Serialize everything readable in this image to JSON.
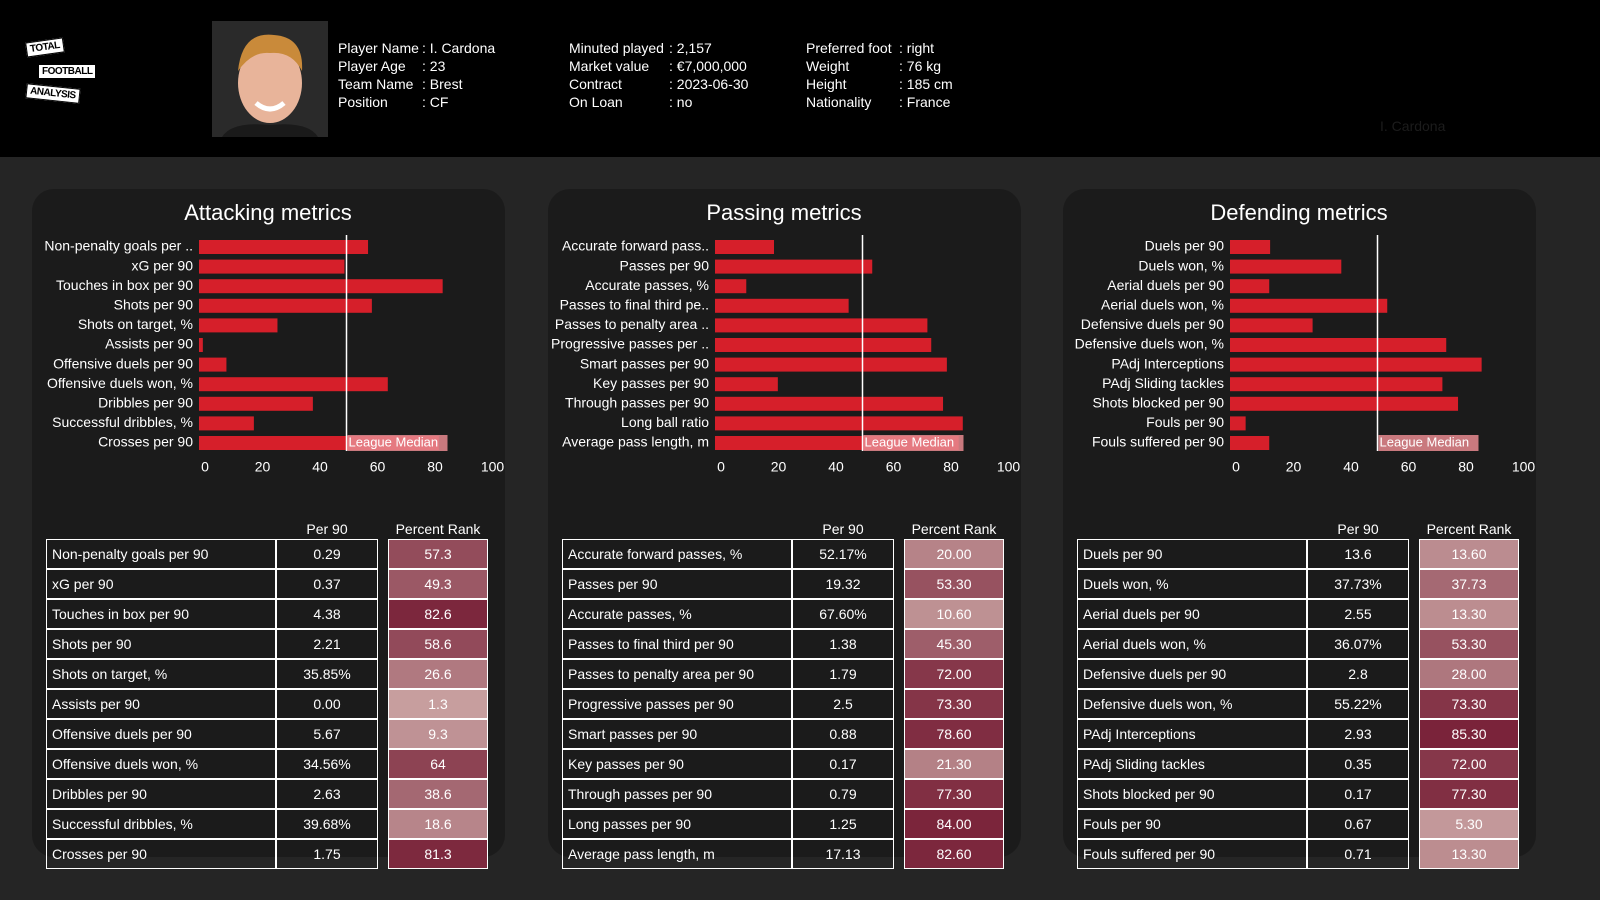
{
  "header": {
    "logo": [
      "TOTAL",
      "FOOTBALL",
      "ANALYSIS"
    ],
    "fields": [
      [
        {
          "label": "Player Name",
          "value": ": I. Cardona"
        },
        {
          "label": "Player Age",
          "value": ": 23"
        },
        {
          "label": "Team Name",
          "value": ": Brest"
        },
        {
          "label": "Position",
          "value": ": CF"
        }
      ],
      [
        {
          "label": "Minuted played",
          "value": ": 2,157"
        },
        {
          "label": "Market value",
          "value": ": €7,000,000"
        },
        {
          "label": "Contract",
          "value": ": 2023-06-30"
        },
        {
          "label": "On Loan",
          "value": ": no"
        }
      ],
      [
        {
          "label": "Preferred foot",
          "value": ": right"
        },
        {
          "label": "Weight",
          "value": ": 76 kg"
        },
        {
          "label": "Height",
          "value": ": 185 cm"
        },
        {
          "label": "Nationality",
          "value": ": France"
        }
      ]
    ],
    "watermark": "I. Cardona"
  },
  "chart_data": [
    {
      "type": "bar",
      "orientation": "horizontal",
      "title": "Attacking metrics",
      "color": "#d61f2a",
      "categories": [
        "Non-penalty goals per ..",
        "xG per 90",
        "Touches in box per 90",
        "Shots per 90",
        "Shots on target, %",
        "Assists per 90",
        "Offensive duels per 90",
        "Offensive duels won, %",
        "Dribbles per 90",
        "Successful dribbles, %",
        "Crosses per 90"
      ],
      "values": [
        57.3,
        49.3,
        82.6,
        58.6,
        26.6,
        1.3,
        9.3,
        64,
        38.6,
        18.6,
        81.3
      ],
      "xlim": [
        0,
        100
      ],
      "xticks": [
        0,
        20,
        40,
        60,
        80,
        100
      ],
      "median": 50,
      "median_label": "League Median",
      "table": {
        "columns": [
          "Per 90",
          "Percent Rank"
        ],
        "rows": [
          [
            "Non-penalty goals per 90",
            "0.29"
          ],
          [
            "xG per 90",
            "0.37"
          ],
          [
            "Touches in box per 90",
            "4.38"
          ],
          [
            "Shots per 90",
            "2.21"
          ],
          [
            "Shots on target, %",
            "35.85%"
          ],
          [
            "Assists per 90",
            "0.00"
          ],
          [
            "Offensive duels per 90",
            "5.67"
          ],
          [
            "Offensive duels won, %",
            "34.56%"
          ],
          [
            "Dribbles per 90",
            "2.63"
          ],
          [
            "Successful dribbles, %",
            "39.68%"
          ],
          [
            "Crosses per 90",
            "1.75"
          ]
        ]
      }
    },
    {
      "type": "bar",
      "orientation": "horizontal",
      "title": "Passing metrics",
      "color": "#d61f2a",
      "categories": [
        "Accurate forward pass..",
        "Passes per 90",
        "Accurate passes, %",
        "Passes to final third pe..",
        "Passes to penalty area ..",
        "Progressive passes per ..",
        "Smart passes per 90",
        "Key passes per 90",
        "Through passes per 90",
        "Long ball ratio",
        "Average pass length, m"
      ],
      "values": [
        20,
        53.3,
        10.6,
        45.3,
        72,
        73.3,
        78.6,
        21.3,
        77.3,
        84,
        82.6
      ],
      "value_labels": [
        "20.00",
        "53.30",
        "10.60",
        "45.30",
        "72.00",
        "73.30",
        "78.60",
        "21.30",
        "77.30",
        "84.00",
        "82.60"
      ],
      "xlim": [
        0,
        100
      ],
      "xticks": [
        0,
        20,
        40,
        60,
        80,
        100
      ],
      "median": 50,
      "median_label": "League Median",
      "table": {
        "columns": [
          "Per 90",
          "Percent Rank"
        ],
        "rows": [
          [
            "Accurate forward passes, %",
            "52.17%"
          ],
          [
            "Passes per 90",
            "19.32"
          ],
          [
            "Accurate passes, %",
            "67.60%"
          ],
          [
            "Passes to final third per 90",
            "1.38"
          ],
          [
            "Passes to penalty area per 90",
            "1.79"
          ],
          [
            "Progressive passes per 90",
            "2.5"
          ],
          [
            "Smart passes per 90",
            "0.88"
          ],
          [
            "Key passes per 90",
            "0.17"
          ],
          [
            "Through passes per 90",
            "0.79"
          ],
          [
            "Long passes per 90",
            "1.25"
          ],
          [
            "Average pass length, m",
            "17.13"
          ]
        ]
      }
    },
    {
      "type": "bar",
      "orientation": "horizontal",
      "title": "Defending metrics",
      "color": "#d61f2a",
      "categories": [
        "Duels per 90",
        "Duels won, %",
        "Aerial duels per 90",
        "Aerial duels won, %",
        "Defensive duels per 90",
        "Defensive duels won, %",
        "PAdj Interceptions",
        "PAdj Sliding tackles",
        "Shots blocked per 90",
        "Fouls per 90",
        "Fouls suffered per 90"
      ],
      "values": [
        13.6,
        37.73,
        13.3,
        53.3,
        28,
        73.3,
        85.3,
        72,
        77.3,
        5.3,
        13.3
      ],
      "value_labels": [
        "13.60",
        "37.73",
        "13.30",
        "53.30",
        "28.00",
        "73.30",
        "85.30",
        "72.00",
        "77.30",
        "5.30",
        "13.30"
      ],
      "xlim": [
        0,
        100
      ],
      "xticks": [
        0,
        20,
        40,
        60,
        80,
        100
      ],
      "median": 50,
      "median_label": "League Median",
      "table": {
        "columns": [
          "Per 90",
          "Percent Rank"
        ],
        "rows": [
          [
            "Duels per 90",
            "13.6"
          ],
          [
            "Duels won, %",
            "37.73%"
          ],
          [
            "Aerial duels per 90",
            "2.55"
          ],
          [
            "Aerial duels won, %",
            "36.07%"
          ],
          [
            "Defensive duels per 90",
            "2.8"
          ],
          [
            "Defensive duels won, %",
            "55.22%"
          ],
          [
            "PAdj Interceptions",
            "2.93"
          ],
          [
            "PAdj Sliding tackles",
            "0.35"
          ],
          [
            "Shots blocked per 90",
            "0.17"
          ],
          [
            "Fouls per 90",
            "0.67"
          ],
          [
            "Fouls suffered per 90",
            "0.71"
          ]
        ]
      }
    }
  ]
}
